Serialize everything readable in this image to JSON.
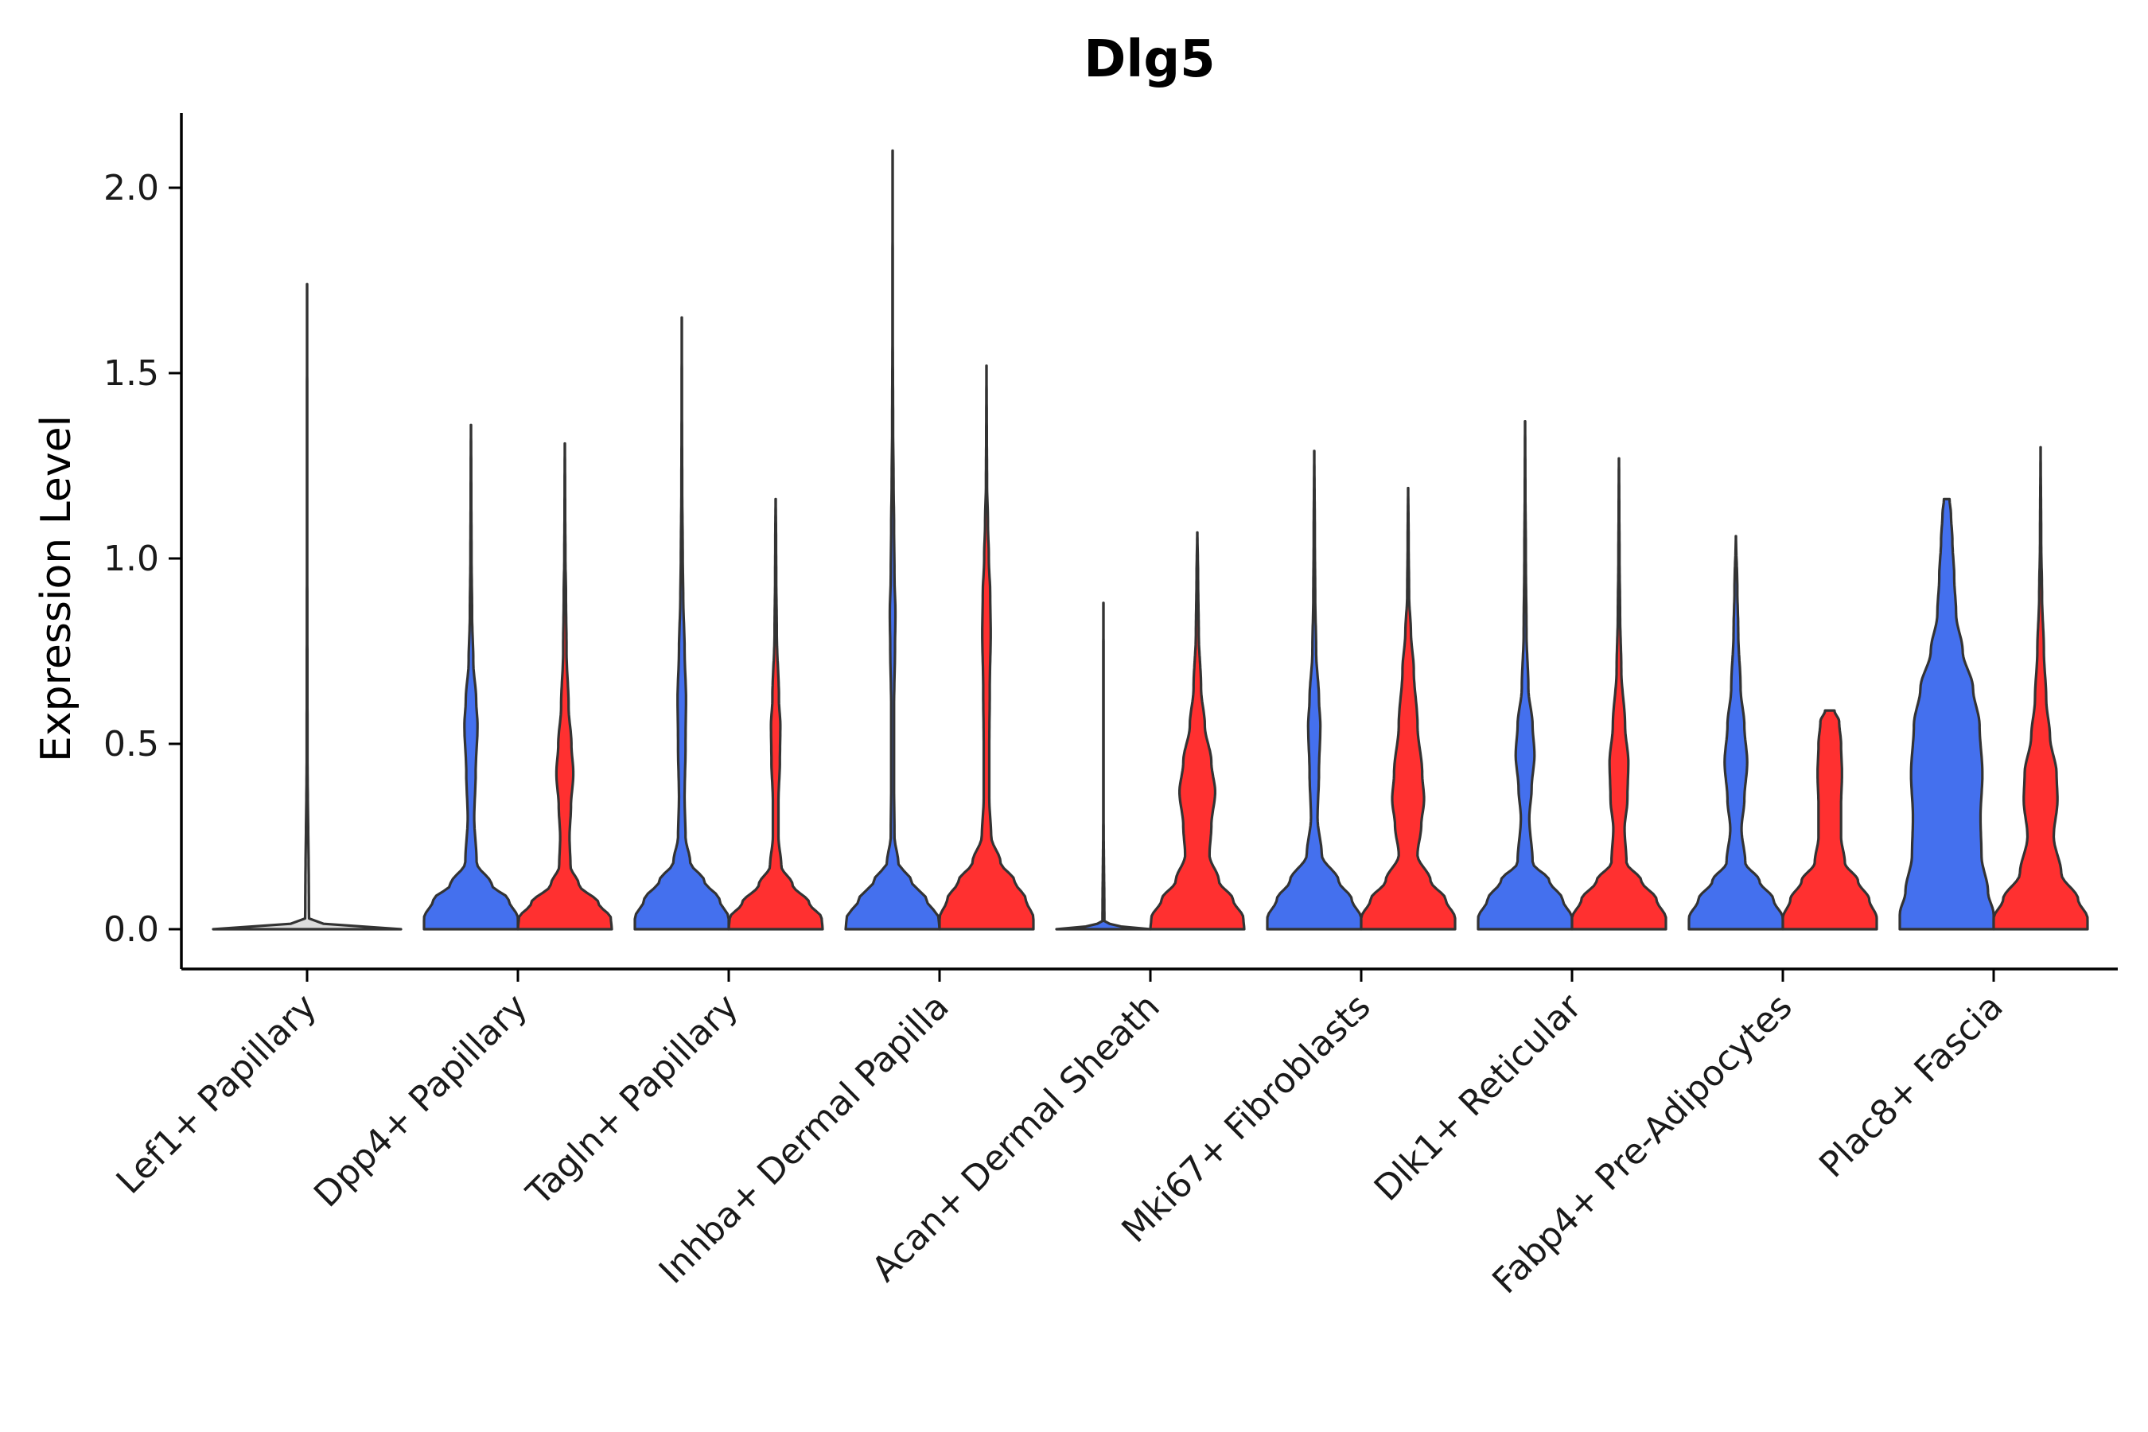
{
  "chart_data": {
    "type": "violin",
    "title": "Dlg5",
    "xlabel": "",
    "ylabel": "Expression Level",
    "ylim": [
      -0.1,
      2.2
    ],
    "yticks": [
      {
        "value": 0.0,
        "label": "0.0"
      },
      {
        "value": 0.5,
        "label": "0.5"
      },
      {
        "value": 1.0,
        "label": "1.0"
      },
      {
        "value": 1.5,
        "label": "1.5"
      },
      {
        "value": 2.0,
        "label": "2.0"
      }
    ],
    "grid": false,
    "legend": "none",
    "series_colors": {
      "group1": "#4470ee",
      "group2": "#ff3030"
    },
    "outline_color": "#333333",
    "categories": [
      {
        "label": "Lef1+ Papillary",
        "split": false,
        "max": 1.74,
        "profile": [
          [
            0,
            0.5
          ],
          [
            0.01,
            0.1
          ],
          [
            0.03,
            0.01
          ],
          [
            0.5,
            0.002
          ],
          [
            1.0,
            0.001
          ],
          [
            1.74,
            0.0005
          ]
        ]
      },
      {
        "label": "Dpp4+ Papillary",
        "split": true,
        "left": {
          "max": 1.36,
          "profile": [
            [
              0,
              0.5
            ],
            [
              0.03,
              0.5
            ],
            [
              0.08,
              0.4
            ],
            [
              0.12,
              0.22
            ],
            [
              0.18,
              0.06
            ],
            [
              0.3,
              0.035
            ],
            [
              0.42,
              0.05
            ],
            [
              0.55,
              0.07
            ],
            [
              0.62,
              0.055
            ],
            [
              0.72,
              0.025
            ],
            [
              0.85,
              0.012
            ],
            [
              1.0,
              0.006
            ],
            [
              1.2,
              0.003
            ],
            [
              1.36,
              0.001
            ]
          ]
        },
        "right": {
          "max": 1.31,
          "profile": [
            [
              0,
              0.5
            ],
            [
              0.03,
              0.49
            ],
            [
              0.07,
              0.36
            ],
            [
              0.12,
              0.15
            ],
            [
              0.17,
              0.06
            ],
            [
              0.25,
              0.05
            ],
            [
              0.33,
              0.065
            ],
            [
              0.42,
              0.09
            ],
            [
              0.5,
              0.07
            ],
            [
              0.6,
              0.04
            ],
            [
              0.75,
              0.018
            ],
            [
              0.9,
              0.012
            ],
            [
              1.0,
              0.006
            ],
            [
              1.15,
              0.003
            ],
            [
              1.31,
              0.001
            ]
          ]
        }
      },
      {
        "label": "Tagln+ Papillary",
        "split": true,
        "left": {
          "max": 1.65,
          "profile": [
            [
              0,
              0.5
            ],
            [
              0.03,
              0.5
            ],
            [
              0.08,
              0.4
            ],
            [
              0.13,
              0.24
            ],
            [
              0.18,
              0.09
            ],
            [
              0.25,
              0.04
            ],
            [
              0.35,
              0.03
            ],
            [
              0.5,
              0.04
            ],
            [
              0.62,
              0.045
            ],
            [
              0.75,
              0.03
            ],
            [
              0.9,
              0.015
            ],
            [
              1.0,
              0.01
            ],
            [
              1.2,
              0.004
            ],
            [
              1.4,
              0.002
            ],
            [
              1.65,
              0.0005
            ]
          ]
        },
        "right": {
          "max": 1.16,
          "profile": [
            [
              0,
              0.5
            ],
            [
              0.03,
              0.49
            ],
            [
              0.07,
              0.36
            ],
            [
              0.12,
              0.18
            ],
            [
              0.17,
              0.06
            ],
            [
              0.25,
              0.03
            ],
            [
              0.35,
              0.03
            ],
            [
              0.45,
              0.045
            ],
            [
              0.55,
              0.05
            ],
            [
              0.62,
              0.035
            ],
            [
              0.8,
              0.012
            ],
            [
              0.95,
              0.006
            ],
            [
              1.05,
              0.004
            ],
            [
              1.16,
              0.001
            ]
          ]
        }
      },
      {
        "label": "Inhba+ Dermal Papilla",
        "split": true,
        "left": {
          "max": 2.1,
          "profile": [
            [
              0,
              0.5
            ],
            [
              0.03,
              0.49
            ],
            [
              0.08,
              0.36
            ],
            [
              0.13,
              0.2
            ],
            [
              0.18,
              0.06
            ],
            [
              0.25,
              0.02
            ],
            [
              0.4,
              0.015
            ],
            [
              0.6,
              0.015
            ],
            [
              0.75,
              0.025
            ],
            [
              0.85,
              0.03
            ],
            [
              0.95,
              0.02
            ],
            [
              1.1,
              0.015
            ],
            [
              1.2,
              0.01
            ],
            [
              1.35,
              0.005
            ],
            [
              1.6,
              0.002
            ],
            [
              2.1,
              0.0005
            ]
          ]
        },
        "right": {
          "max": 1.52,
          "profile": [
            [
              0,
              0.5
            ],
            [
              0.03,
              0.5
            ],
            [
              0.08,
              0.42
            ],
            [
              0.13,
              0.3
            ],
            [
              0.18,
              0.15
            ],
            [
              0.25,
              0.05
            ],
            [
              0.35,
              0.03
            ],
            [
              0.5,
              0.03
            ],
            [
              0.65,
              0.035
            ],
            [
              0.8,
              0.045
            ],
            [
              0.9,
              0.04
            ],
            [
              1.0,
              0.025
            ],
            [
              1.1,
              0.015
            ],
            [
              1.2,
              0.006
            ],
            [
              1.35,
              0.003
            ],
            [
              1.52,
              0.0005
            ]
          ]
        }
      },
      {
        "label": "Acan+ Dermal Sheath",
        "split": true,
        "left": {
          "max": 0.88,
          "profile": [
            [
              0,
              0.5
            ],
            [
              0.005,
              0.2
            ],
            [
              0.02,
              0.01
            ],
            [
              0.3,
              0.002
            ],
            [
              0.6,
              0.002
            ],
            [
              0.88,
              0.001
            ]
          ]
        },
        "right": {
          "max": 1.07,
          "profile": [
            [
              0,
              0.5
            ],
            [
              0.03,
              0.49
            ],
            [
              0.08,
              0.38
            ],
            [
              0.13,
              0.23
            ],
            [
              0.2,
              0.13
            ],
            [
              0.28,
              0.15
            ],
            [
              0.37,
              0.19
            ],
            [
              0.45,
              0.15
            ],
            [
              0.55,
              0.08
            ],
            [
              0.65,
              0.04
            ],
            [
              0.8,
              0.015
            ],
            [
              0.95,
              0.008
            ],
            [
              1.07,
              0.001
            ]
          ]
        }
      },
      {
        "label": "Mki67+ Fibroblasts",
        "split": true,
        "left": {
          "max": 1.29,
          "profile": [
            [
              0,
              0.5
            ],
            [
              0.03,
              0.5
            ],
            [
              0.08,
              0.4
            ],
            [
              0.13,
              0.26
            ],
            [
              0.2,
              0.08
            ],
            [
              0.3,
              0.035
            ],
            [
              0.42,
              0.05
            ],
            [
              0.55,
              0.065
            ],
            [
              0.62,
              0.05
            ],
            [
              0.75,
              0.02
            ],
            [
              0.9,
              0.01
            ],
            [
              1.05,
              0.006
            ],
            [
              1.29,
              0.001
            ]
          ]
        },
        "right": {
          "max": 1.19,
          "profile": [
            [
              0,
              0.5
            ],
            [
              0.03,
              0.5
            ],
            [
              0.08,
              0.4
            ],
            [
              0.13,
              0.24
            ],
            [
              0.2,
              0.1
            ],
            [
              0.28,
              0.14
            ],
            [
              0.35,
              0.17
            ],
            [
              0.42,
              0.15
            ],
            [
              0.55,
              0.1
            ],
            [
              0.7,
              0.06
            ],
            [
              0.8,
              0.03
            ],
            [
              0.9,
              0.01
            ],
            [
              1.05,
              0.005
            ],
            [
              1.19,
              0.001
            ]
          ]
        }
      },
      {
        "label": "Dlk1+ Reticular",
        "split": true,
        "left": {
          "max": 1.37,
          "profile": [
            [
              0,
              0.5
            ],
            [
              0.03,
              0.5
            ],
            [
              0.08,
              0.4
            ],
            [
              0.13,
              0.26
            ],
            [
              0.18,
              0.08
            ],
            [
              0.3,
              0.045
            ],
            [
              0.38,
              0.07
            ],
            [
              0.47,
              0.1
            ],
            [
              0.55,
              0.08
            ],
            [
              0.65,
              0.035
            ],
            [
              0.8,
              0.015
            ],
            [
              1.0,
              0.008
            ],
            [
              1.2,
              0.003
            ],
            [
              1.37,
              0.001
            ]
          ]
        },
        "right": {
          "max": 1.27,
          "profile": [
            [
              0,
              0.5
            ],
            [
              0.03,
              0.5
            ],
            [
              0.08,
              0.4
            ],
            [
              0.13,
              0.24
            ],
            [
              0.18,
              0.08
            ],
            [
              0.27,
              0.06
            ],
            [
              0.35,
              0.09
            ],
            [
              0.45,
              0.1
            ],
            [
              0.55,
              0.065
            ],
            [
              0.7,
              0.025
            ],
            [
              0.85,
              0.012
            ],
            [
              1.0,
              0.006
            ],
            [
              1.15,
              0.003
            ],
            [
              1.27,
              0.001
            ]
          ]
        }
      },
      {
        "label": "Fabp4+ Pre-Adipocytes",
        "split": true,
        "left": {
          "max": 1.06,
          "profile": [
            [
              0,
              0.5
            ],
            [
              0.03,
              0.5
            ],
            [
              0.08,
              0.4
            ],
            [
              0.13,
              0.25
            ],
            [
              0.18,
              0.1
            ],
            [
              0.27,
              0.06
            ],
            [
              0.35,
              0.09
            ],
            [
              0.45,
              0.12
            ],
            [
              0.55,
              0.09
            ],
            [
              0.65,
              0.05
            ],
            [
              0.8,
              0.025
            ],
            [
              0.92,
              0.015
            ],
            [
              1.06,
              0.001
            ]
          ]
        },
        "right": {
          "max": 0.59,
          "profile": [
            [
              0,
              0.5
            ],
            [
              0.03,
              0.5
            ],
            [
              0.08,
              0.42
            ],
            [
              0.13,
              0.3
            ],
            [
              0.18,
              0.16
            ],
            [
              0.25,
              0.12
            ],
            [
              0.33,
              0.12
            ],
            [
              0.42,
              0.13
            ],
            [
              0.5,
              0.12
            ],
            [
              0.56,
              0.1
            ],
            [
              0.59,
              0.05
            ]
          ]
        }
      },
      {
        "label": "Plac8+ Fascia",
        "split": true,
        "left": {
          "max": 1.16,
          "profile": [
            [
              0,
              0.5
            ],
            [
              0.04,
              0.5
            ],
            [
              0.1,
              0.44
            ],
            [
              0.2,
              0.37
            ],
            [
              0.3,
              0.36
            ],
            [
              0.42,
              0.38
            ],
            [
              0.55,
              0.35
            ],
            [
              0.65,
              0.28
            ],
            [
              0.75,
              0.17
            ],
            [
              0.85,
              0.1
            ],
            [
              0.95,
              0.08
            ],
            [
              1.05,
              0.06
            ],
            [
              1.12,
              0.045
            ],
            [
              1.16,
              0.03
            ]
          ]
        },
        "right": {
          "max": 1.3,
          "profile": [
            [
              0,
              0.5
            ],
            [
              0.03,
              0.5
            ],
            [
              0.08,
              0.4
            ],
            [
              0.15,
              0.22
            ],
            [
              0.25,
              0.14
            ],
            [
              0.35,
              0.18
            ],
            [
              0.42,
              0.17
            ],
            [
              0.52,
              0.1
            ],
            [
              0.62,
              0.06
            ],
            [
              0.75,
              0.035
            ],
            [
              0.9,
              0.015
            ],
            [
              1.05,
              0.006
            ],
            [
              1.3,
              0.001
            ]
          ]
        }
      }
    ]
  }
}
